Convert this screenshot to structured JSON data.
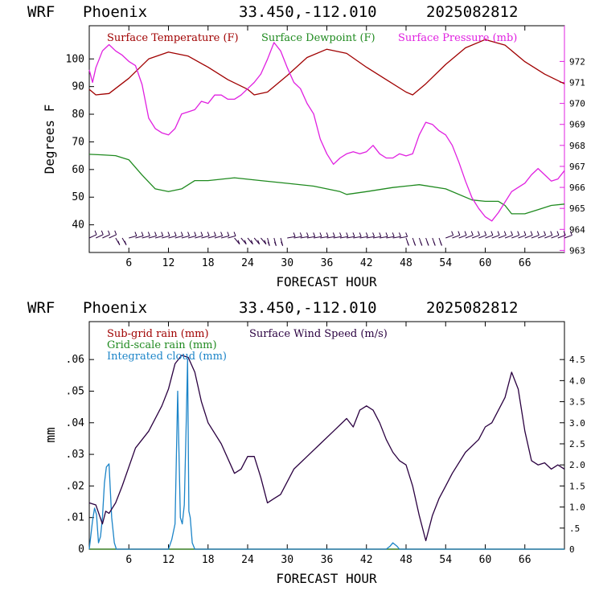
{
  "header": {
    "model": "WRF",
    "station": "Phoenix",
    "coords": "33.450,-112.010",
    "run": "2025082812"
  },
  "colors": {
    "temperature": "#a00000",
    "dewpoint": "#1f8a1f",
    "pressure": "#e020e0",
    "wind_barbs": "#2a0040",
    "subgrid_rain": "#a00000",
    "gridscale_rain": "#1f8a1f",
    "cloud": "#1b84c8",
    "wind_speed": "#2a0040"
  },
  "chart_data": [
    {
      "type": "line",
      "xlabel": "FORECAST HOUR",
      "ylabel": "Degrees F",
      "xlim": [
        0,
        72
      ],
      "xticks": [
        "6",
        "12",
        "18",
        "24",
        "30",
        "36",
        "42",
        "48",
        "54",
        "60",
        "66"
      ],
      "ylim": [
        30,
        112
      ],
      "yticks": [
        "40",
        "50",
        "60",
        "70",
        "80",
        "90",
        "100"
      ],
      "y2lim": [
        962.9,
        973.7
      ],
      "y2ticks": [
        "963",
        "964",
        "965",
        "966",
        "967",
        "968",
        "969",
        "970",
        "971",
        "972"
      ],
      "wind_barbs": "bottom row",
      "series": [
        {
          "name": "Surface Temperature (F)",
          "axis": "left",
          "x": [
            0,
            1,
            3,
            6,
            9,
            12,
            15,
            18,
            21,
            24,
            25,
            27,
            30,
            33,
            36,
            39,
            42,
            45,
            48,
            49,
            51,
            54,
            57,
            60,
            63,
            66,
            69,
            72
          ],
          "y": [
            89,
            87,
            87.5,
            93,
            100,
            102.5,
            101,
            97,
            92.5,
            89,
            87,
            88,
            94,
            100.5,
            103.5,
            102,
            97,
            92.5,
            88,
            87,
            91,
            98,
            104,
            107,
            105,
            99,
            94.5,
            91
          ]
        },
        {
          "name": "Surface Dewpoint (F)",
          "axis": "left",
          "x": [
            0,
            2,
            4,
            6,
            8,
            10,
            12,
            14,
            16,
            18,
            22,
            26,
            30,
            34,
            36,
            38,
            39,
            42,
            46,
            50,
            54,
            58,
            60,
            62,
            63,
            64,
            66,
            68,
            70,
            72
          ],
          "y": [
            65.5,
            65.3,
            65,
            63.5,
            58,
            53,
            52,
            53,
            56,
            56,
            57,
            56,
            55,
            54,
            53,
            52,
            51,
            52,
            53.5,
            54.5,
            53,
            49,
            48.5,
            48.5,
            47,
            44,
            44,
            45.5,
            47,
            47.5
          ]
        },
        {
          "name": "Surface Pressure (mb)",
          "axis": "right",
          "x": [
            0,
            0.5,
            1,
            2,
            3,
            4,
            5,
            6,
            7,
            8,
            9,
            10,
            11,
            12,
            13,
            14,
            15,
            16,
            17,
            18,
            19,
            20,
            21,
            22,
            23,
            24,
            25,
            26,
            27,
            28,
            29,
            30,
            31,
            32,
            33,
            34,
            35,
            36,
            37,
            38,
            39,
            40,
            41,
            42,
            43,
            44,
            45,
            46,
            47,
            48,
            49,
            50,
            51,
            52,
            53,
            54,
            55,
            56,
            57,
            58,
            59,
            60,
            61,
            62,
            63,
            64,
            65,
            66,
            67,
            68,
            69,
            70,
            71,
            72
          ],
          "y": [
            971.6,
            971,
            971.7,
            972.5,
            972.8,
            972.5,
            972.3,
            972,
            971.8,
            970.9,
            969.3,
            968.8,
            968.6,
            968.5,
            968.8,
            969.5,
            969.6,
            969.7,
            970.1,
            970,
            970.4,
            970.4,
            970.2,
            970.2,
            970.4,
            970.7,
            971,
            971.4,
            972.1,
            972.9,
            972.5,
            971.7,
            971,
            970.7,
            970,
            969.5,
            968.3,
            967.6,
            967.1,
            967.4,
            967.6,
            967.7,
            967.6,
            967.7,
            968,
            967.6,
            967.4,
            967.4,
            967.6,
            967.5,
            967.6,
            968.5,
            969.1,
            969,
            968.7,
            968.5,
            968,
            967.2,
            966.3,
            965.5,
            965,
            964.6,
            964.4,
            964.8,
            965.3,
            965.8,
            966,
            966.2,
            966.6,
            966.9,
            966.6,
            966.3,
            966.4,
            966.8
          ]
        }
      ]
    },
    {
      "type": "line",
      "xlabel": "FORECAST HOUR",
      "ylabel": "mm",
      "xlim": [
        0,
        72
      ],
      "xticks": [
        "6",
        "12",
        "18",
        "24",
        "30",
        "36",
        "42",
        "48",
        "54",
        "60",
        "66"
      ],
      "ylim": [
        0,
        0.072
      ],
      "yticks": [
        "0",
        ".01",
        ".02",
        ".03",
        ".04",
        ".05",
        ".06"
      ],
      "y2lim": [
        0,
        5.4
      ],
      "y2ticks": [
        "0",
        ".5",
        "1.0",
        "1.5",
        "2.0",
        "2.5",
        "3.0",
        "3.5",
        "4.0",
        "4.5"
      ],
      "series": [
        {
          "name": "Sub-grid rain (mm)",
          "axis": "left",
          "x": [
            0,
            72
          ],
          "y": [
            0,
            0
          ]
        },
        {
          "name": "Grid-scale rain (mm)",
          "axis": "left",
          "x": [
            0,
            72
          ],
          "y": [
            0,
            0
          ]
        },
        {
          "name": "Integrated cloud (mm)",
          "axis": "left",
          "x": [
            0,
            0.5,
            0.8,
            1.1,
            1.4,
            1.7,
            2,
            2.3,
            2.6,
            3,
            3.4,
            3.8,
            4.1,
            4.5,
            5,
            11.5,
            12,
            12.5,
            13,
            13.4,
            13.8,
            14.1,
            14.4,
            14.7,
            14.9,
            15.1,
            15.3,
            15.6,
            16,
            16.5,
            45,
            45.6,
            46,
            46.6,
            47,
            72
          ],
          "y": [
            0,
            0.009,
            0.013,
            0.011,
            0.002,
            0.004,
            0.01,
            0.021,
            0.026,
            0.027,
            0.01,
            0.002,
            0,
            0,
            0,
            0,
            0,
            0.003,
            0.008,
            0.05,
            0.01,
            0.008,
            0.014,
            0.041,
            0.06,
            0.012,
            0.01,
            0.002,
            0,
            0,
            0,
            0.001,
            0.002,
            0.001,
            0,
            0
          ]
        },
        {
          "name": "Surface Wind Speed (m/s)",
          "axis": "right",
          "x": [
            0,
            1,
            2,
            2.5,
            3,
            4,
            5,
            7,
            9,
            11,
            12,
            13,
            14,
            15,
            16,
            17,
            18,
            20,
            22,
            23,
            24,
            25,
            26,
            27,
            28,
            29,
            30,
            31,
            33,
            35,
            37,
            39,
            40,
            41,
            42,
            43,
            44,
            45,
            46,
            47,
            48,
            49,
            50,
            51,
            52,
            53,
            54,
            55,
            57,
            59,
            60,
            61,
            62,
            63,
            64,
            65,
            66,
            67,
            68,
            69,
            70,
            71,
            72
          ],
          "y": [
            1.1,
            1.05,
            0.6,
            0.9,
            0.85,
            1.1,
            1.5,
            2.4,
            2.8,
            3.4,
            3.8,
            4.4,
            4.6,
            4.55,
            4.2,
            3.5,
            3,
            2.5,
            1.8,
            1.9,
            2.2,
            2.2,
            1.7,
            1.1,
            1.2,
            1.3,
            1.6,
            1.9,
            2.2,
            2.5,
            2.8,
            3.1,
            2.9,
            3.3,
            3.4,
            3.3,
            3,
            2.6,
            2.3,
            2.1,
            2.0,
            1.5,
            0.8,
            0.2,
            0.8,
            1.2,
            1.5,
            1.8,
            2.3,
            2.6,
            2.9,
            3,
            3.3,
            3.6,
            4.2,
            3.8,
            2.8,
            2.1,
            2.0,
            2.05,
            1.9,
            2.0,
            1.9
          ]
        }
      ]
    }
  ]
}
